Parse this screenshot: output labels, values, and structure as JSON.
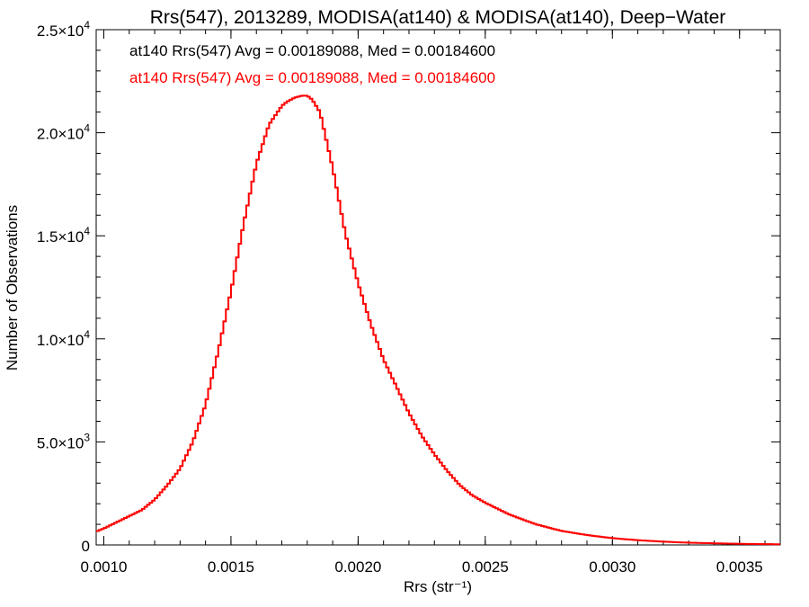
{
  "chart_data": {
    "type": "histogram",
    "title": "Rrs(547), 2013289, MODISA(at140) & MODISA(at140), Deep−Water",
    "xlabel": "Rrs (str⁻¹)",
    "ylabel": "Number of Observations",
    "xlim": [
      0.00097,
      0.00366
    ],
    "ylim": [
      0,
      25000
    ],
    "x_ticks": [
      {
        "value": 0.001,
        "label": "0.0010"
      },
      {
        "value": 0.0015,
        "label": "0.0015"
      },
      {
        "value": 0.002,
        "label": "0.0020"
      },
      {
        "value": 0.0025,
        "label": "0.0025"
      },
      {
        "value": 0.003,
        "label": "0.0030"
      },
      {
        "value": 0.0035,
        "label": "0.0035"
      }
    ],
    "y_ticks": [
      {
        "value": 0,
        "mant": "0",
        "exp": ""
      },
      {
        "value": 5000,
        "mant": "5.0×10",
        "exp": "3"
      },
      {
        "value": 10000,
        "mant": "1.0×10",
        "exp": "4"
      },
      {
        "value": 15000,
        "mant": "1.5×10",
        "exp": "4"
      },
      {
        "value": 20000,
        "mant": "2.0×10",
        "exp": "4"
      },
      {
        "value": 25000,
        "mant": "2.5×10",
        "exp": "4"
      }
    ],
    "annotations": [
      {
        "text": "at140 Rrs(547) Avg = 0.00189088, Med = 0.00184600",
        "color": "#000000"
      },
      {
        "text": "at140 Rrs(547) Avg = 0.00189088, Med = 0.00184600",
        "color": "#ff0000"
      }
    ],
    "series": [
      {
        "color": "#000000",
        "x": [
          0.00097,
          0.001,
          0.00105,
          0.0011,
          0.00115,
          0.0012,
          0.00125,
          0.0013,
          0.00135,
          0.0014,
          0.00145,
          0.0015,
          0.00155,
          0.0016,
          0.00165,
          0.0017,
          0.00172,
          0.00175,
          0.00178,
          0.0018,
          0.00182,
          0.00185,
          0.0019,
          0.00195,
          0.002,
          0.00205,
          0.0021,
          0.00215,
          0.0022,
          0.00225,
          0.0023,
          0.00235,
          0.0024,
          0.00245,
          0.0025,
          0.0026,
          0.0027,
          0.0028,
          0.0029,
          0.003,
          0.0031,
          0.0032,
          0.0033,
          0.0034,
          0.0035,
          0.0036,
          0.00366
        ],
        "y": [
          650,
          800,
          1100,
          1400,
          1700,
          2200,
          2900,
          3700,
          5000,
          6800,
          9400,
          12300,
          15600,
          18500,
          20400,
          21300,
          21500,
          21700,
          21800,
          21800,
          21600,
          21000,
          18300,
          15100,
          12700,
          10700,
          9000,
          7700,
          6400,
          5300,
          4400,
          3600,
          2900,
          2400,
          2050,
          1450,
          1000,
          680,
          480,
          330,
          230,
          160,
          110,
          80,
          55,
          40,
          30
        ]
      },
      {
        "color": "#ff0000",
        "x": [
          0.00097,
          0.001,
          0.00105,
          0.0011,
          0.00115,
          0.0012,
          0.00125,
          0.0013,
          0.00135,
          0.0014,
          0.00145,
          0.0015,
          0.00155,
          0.0016,
          0.00165,
          0.0017,
          0.00172,
          0.00175,
          0.00178,
          0.0018,
          0.00182,
          0.00185,
          0.0019,
          0.00195,
          0.002,
          0.00205,
          0.0021,
          0.00215,
          0.0022,
          0.00225,
          0.0023,
          0.00235,
          0.0024,
          0.00245,
          0.0025,
          0.0026,
          0.0027,
          0.0028,
          0.0029,
          0.003,
          0.0031,
          0.0032,
          0.0033,
          0.0034,
          0.0035,
          0.0036,
          0.00366
        ],
        "y": [
          650,
          800,
          1100,
          1400,
          1700,
          2200,
          2900,
          3700,
          5000,
          6800,
          9400,
          12300,
          15600,
          18500,
          20400,
          21300,
          21500,
          21700,
          21800,
          21800,
          21600,
          21000,
          18300,
          15100,
          12700,
          10700,
          9000,
          7700,
          6400,
          5300,
          4400,
          3600,
          2900,
          2400,
          2050,
          1450,
          1000,
          680,
          480,
          330,
          230,
          160,
          110,
          80,
          55,
          40,
          30
        ]
      }
    ]
  }
}
